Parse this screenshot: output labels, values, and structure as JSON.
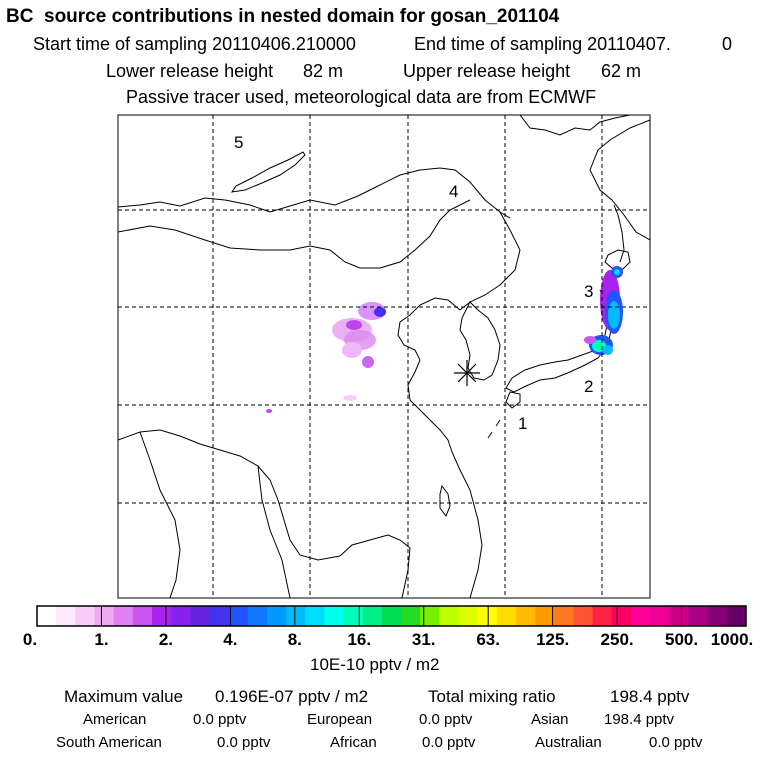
{
  "header": {
    "title": "BC  source contributions in nested domain for gosan_201104",
    "start_label": "Start time of sampling 20110406.210000",
    "end_label": "End time of sampling 20110407.",
    "end_value": "0",
    "lower_label": "Lower release height",
    "lower_value": "82 m",
    "upper_label": "Upper release height",
    "upper_value": "62 m",
    "note": "Passive tracer used, meteorological data are from ECMWF"
  },
  "map": {
    "region_labels": [
      "1",
      "2",
      "3",
      "4",
      "5"
    ],
    "receptor": "gosan",
    "receptor_symbol": "star"
  },
  "colorbar": {
    "unit_label": "10E-10 pptv / m2",
    "tick_labels": [
      "0.",
      "1.",
      "2.",
      "4.",
      "8.",
      "16.",
      "31.",
      "63.",
      "125.",
      "250.",
      "500.",
      "1000."
    ],
    "colors": [
      "#ffffff",
      "#fde8fd",
      "#f7ccf7",
      "#eeaaee",
      "#e080f0",
      "#cc55f0",
      "#aa22ee",
      "#8822ee",
      "#6622dd",
      "#4433ee",
      "#2255ff",
      "#1177ff",
      "#0099ff",
      "#00bbff",
      "#00ddff",
      "#00ffee",
      "#00ffbb",
      "#00ee88",
      "#00dd55",
      "#22dd22",
      "#77ee00",
      "#bbff00",
      "#ddff00",
      "#ffff00",
      "#ffdd00",
      "#ffbb00",
      "#ff9900",
      "#ff7722",
      "#ff5533",
      "#ff2244",
      "#ff0066",
      "#ff0099",
      "#ee0099",
      "#cc0088",
      "#aa0088",
      "#880077",
      "#660066"
    ]
  },
  "footer": {
    "max_label": "Maximum value",
    "max_value": "0.196E-07 pptv / m2",
    "total_label": "Total mixing ratio",
    "total_value": "198.4 pptv",
    "american_label": "American",
    "american_value": "0.0 pptv",
    "european_label": "European",
    "european_value": "0.0 pptv",
    "asian_label": "Asian",
    "asian_value": "198.4 pptv",
    "south_american_label": "South American",
    "south_american_value": "0.0 pptv",
    "african_label": "African",
    "african_value": "0.0 pptv",
    "australian_label": "Australian",
    "australian_value": "0.0 pptv"
  }
}
